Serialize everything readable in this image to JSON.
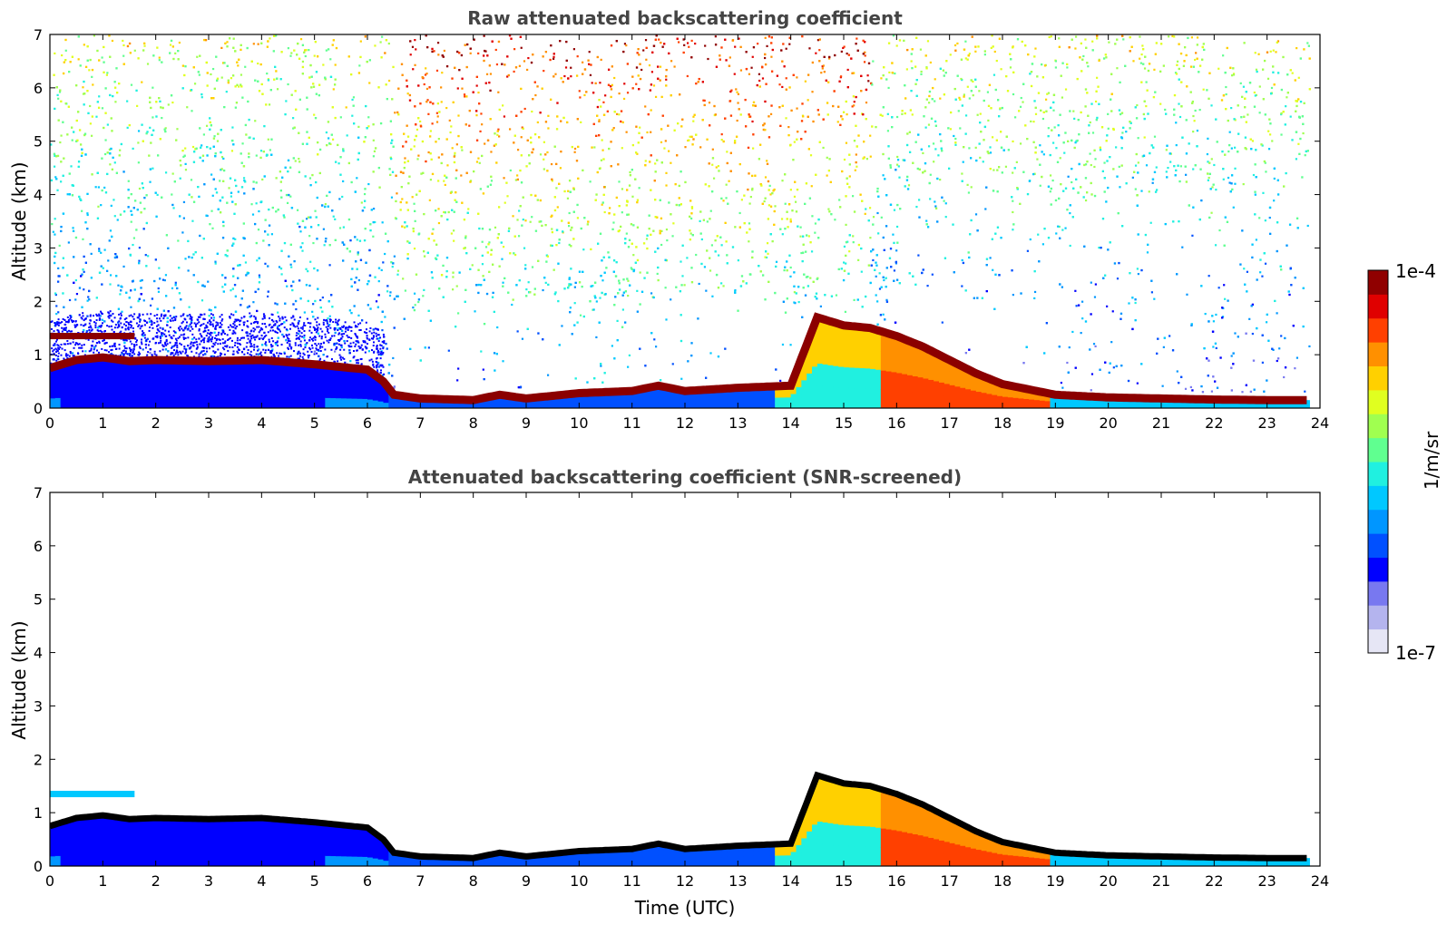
{
  "chart_data": [
    {
      "type": "heatmap",
      "title": "Raw attenuated backscattering coefficient",
      "xlabel": "",
      "ylabel": "Altitude (km)",
      "xlim": [
        0,
        24
      ],
      "ylim": [
        0,
        7
      ],
      "xticks": [
        0,
        1,
        2,
        3,
        4,
        5,
        6,
        7,
        8,
        9,
        10,
        11,
        12,
        13,
        14,
        15,
        16,
        17,
        18,
        19,
        20,
        21,
        22,
        23,
        24
      ],
      "yticks": [
        0,
        1,
        2,
        3,
        4,
        5,
        6,
        7
      ],
      "screened": false,
      "layer_top_km": {
        "time": [
          0,
          0.5,
          1,
          1.5,
          2,
          3,
          4,
          5,
          6,
          6.3,
          6.5,
          7,
          8,
          8.5,
          9,
          10,
          11,
          11.5,
          12,
          13,
          14,
          14.5,
          15,
          15.5,
          16,
          16.5,
          17,
          17.5,
          18,
          18.5,
          19,
          20,
          21,
          22,
          23,
          23.8
        ],
        "altitude": [
          0.75,
          0.9,
          0.95,
          0.88,
          0.9,
          0.88,
          0.9,
          0.82,
          0.72,
          0.5,
          0.25,
          0.18,
          0.15,
          0.25,
          0.18,
          0.28,
          0.32,
          0.42,
          0.32,
          0.38,
          0.42,
          1.7,
          1.55,
          1.5,
          1.35,
          1.15,
          0.9,
          0.65,
          0.45,
          0.35,
          0.25,
          0.2,
          0.18,
          0.16,
          0.15,
          0.15
        ]
      },
      "elevated_layer_km": {
        "time": [
          0,
          1.6
        ],
        "altitude": 1.35
      },
      "noise_band": "signal increases toward 7 km in daytime (7–15 UTC)"
    },
    {
      "type": "heatmap",
      "title": "Attenuated backscattering coefficient (SNR-screened)",
      "xlabel": "Time (UTC)",
      "ylabel": "Altitude (km)",
      "xlim": [
        0,
        24
      ],
      "ylim": [
        0,
        7
      ],
      "xticks": [
        0,
        1,
        2,
        3,
        4,
        5,
        6,
        7,
        8,
        9,
        10,
        11,
        12,
        13,
        14,
        15,
        16,
        17,
        18,
        19,
        20,
        21,
        22,
        23,
        24
      ],
      "yticks": [
        0,
        1,
        2,
        3,
        4,
        5,
        6,
        7
      ],
      "screened": true
    }
  ],
  "colorbar": {
    "label": "1/m/sr",
    "max_label": "1e-4",
    "min_label": "1e-7",
    "scale": "log",
    "range": [
      1e-07,
      0.0001
    ],
    "colors": [
      "#e6e6f5",
      "#b4b4ee",
      "#7878f0",
      "#0000ff",
      "#0050ff",
      "#0096ff",
      "#00c8ff",
      "#20f0e0",
      "#60ff90",
      "#a0ff50",
      "#e0ff20",
      "#ffd000",
      "#ff9000",
      "#ff4000",
      "#e00000",
      "#900000"
    ]
  },
  "layer_color_raw": "#8b0000",
  "layer_color_screened": "#000000"
}
